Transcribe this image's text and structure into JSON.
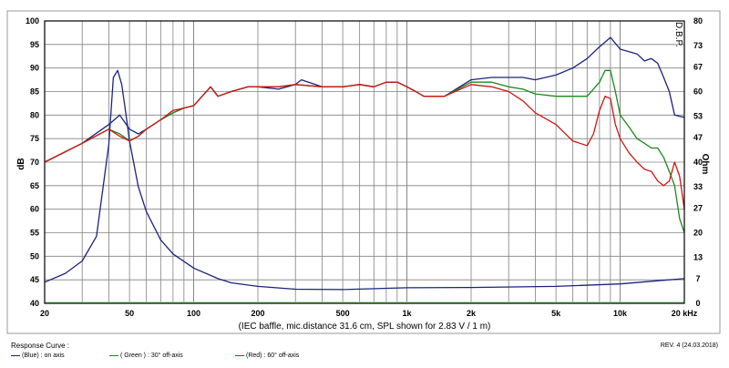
{
  "colors": {
    "blue": "#1a237e",
    "green": "#1a8a1a",
    "red": "#d01414",
    "impedance": "#1a237e",
    "floor": "#9ad99a"
  },
  "watermark": "D.B.P.",
  "legend": {
    "title": "Response Curve :",
    "items": [
      {
        "color": "blue",
        "text": "(Blue) : on axis"
      },
      {
        "color": "green",
        "text": "( Green ) : 30° off-axis"
      },
      {
        "color": "red",
        "text": "(Red) : 60° off-axis"
      }
    ]
  },
  "revision": "REV. 4 (24.03.2018)",
  "chart_data": {
    "type": "line",
    "title": "",
    "caption": "(IEC baffle, mic.distance 31.6 cm, SPL shown for 2.83 V / 1 m)",
    "xlabel": "",
    "ylabel": "dB",
    "y2label": "Ohm",
    "xscale": "log",
    "xlim": [
      20,
      20000
    ],
    "ylim": [
      40,
      100
    ],
    "y2lim": [
      0,
      80
    ],
    "x_ticks": [
      {
        "v": 20,
        "label": "20"
      },
      {
        "v": 50,
        "label": "50"
      },
      {
        "v": 100,
        "label": "100"
      },
      {
        "v": 200,
        "label": "200"
      },
      {
        "v": 500,
        "label": "500"
      },
      {
        "v": 1000,
        "label": "1k"
      },
      {
        "v": 2000,
        "label": "2k"
      },
      {
        "v": 5000,
        "label": "5k"
      },
      {
        "v": 10000,
        "label": "10k"
      },
      {
        "v": 20000,
        "label": "20 kHz"
      }
    ],
    "y_ticks": [
      40,
      45,
      50,
      55,
      60,
      65,
      70,
      75,
      80,
      85,
      90,
      95,
      100
    ],
    "y2_ticks": [
      0,
      7,
      13,
      20,
      27,
      33,
      40,
      47,
      53,
      60,
      67,
      73,
      80
    ],
    "grid": true,
    "series": [
      {
        "name": "on axis",
        "color": "blue",
        "axis": "left",
        "x": [
          20,
          30,
          40,
          45,
          50,
          55,
          60,
          70,
          80,
          90,
          100,
          120,
          130,
          150,
          180,
          200,
          250,
          300,
          320,
          400,
          500,
          600,
          700,
          800,
          900,
          1000,
          1100,
          1200,
          1500,
          2000,
          2500,
          3000,
          3500,
          4000,
          5000,
          6000,
          7000,
          8000,
          8500,
          9000,
          10000,
          12000,
          13000,
          14000,
          15000,
          16000,
          17000,
          18000,
          20000
        ],
        "y": [
          70,
          74,
          78,
          80,
          77,
          76,
          77,
          79,
          80.5,
          81.5,
          82,
          86,
          84,
          85,
          86,
          86,
          85.5,
          86.5,
          87.5,
          86,
          86,
          86.5,
          86,
          87,
          87,
          86,
          85,
          84,
          84,
          87.5,
          88,
          88,
          88,
          87.5,
          88.5,
          90,
          92,
          94.5,
          95.5,
          96.5,
          94,
          93,
          91.5,
          92,
          91,
          88,
          85,
          80,
          79.5
        ]
      },
      {
        "name": "30° off-axis",
        "color": "green",
        "axis": "left",
        "x": [
          20,
          30,
          40,
          45,
          50,
          55,
          60,
          70,
          80,
          90,
          100,
          120,
          130,
          150,
          180,
          200,
          250,
          300,
          400,
          500,
          600,
          700,
          800,
          900,
          1000,
          1100,
          1200,
          1500,
          2000,
          2500,
          3000,
          3500,
          4000,
          5000,
          6000,
          7000,
          8000,
          8500,
          9000,
          9500,
          10000,
          11000,
          12000,
          13000,
          14000,
          15000,
          16000,
          17000,
          18000,
          19000,
          20000
        ],
        "y": [
          70,
          74,
          77,
          76,
          74.5,
          75.5,
          77,
          79,
          80.5,
          81.5,
          82,
          86,
          84,
          85,
          86,
          86,
          86,
          86.5,
          86,
          86,
          86.5,
          86,
          87,
          87,
          86,
          85,
          84,
          84,
          87,
          87,
          86,
          85.5,
          84.5,
          84,
          84,
          84,
          87,
          89.5,
          89.5,
          85,
          80,
          77.5,
          75,
          74,
          73,
          73,
          71,
          68,
          65,
          58,
          55
        ]
      },
      {
        "name": "60° off-axis",
        "color": "red",
        "axis": "left",
        "x": [
          20,
          30,
          40,
          45,
          50,
          55,
          60,
          70,
          80,
          90,
          100,
          120,
          130,
          150,
          180,
          200,
          250,
          300,
          400,
          500,
          600,
          700,
          800,
          900,
          1000,
          1100,
          1200,
          1500,
          2000,
          2500,
          3000,
          3500,
          4000,
          5000,
          6000,
          7000,
          7500,
          8000,
          8500,
          9000,
          9500,
          10000,
          11000,
          12000,
          13000,
          14000,
          15000,
          16000,
          17000,
          18000,
          19000,
          20000
        ],
        "y": [
          70,
          74,
          77,
          75.5,
          74.5,
          75.5,
          77,
          79,
          81,
          81.5,
          82,
          86,
          84,
          85,
          86,
          86,
          86,
          86.5,
          86,
          86,
          86.5,
          86,
          87,
          87,
          86,
          85,
          84,
          84,
          86.5,
          86,
          85,
          83,
          80.5,
          78,
          74.5,
          73.5,
          76,
          81,
          84,
          83.5,
          78,
          75,
          72,
          70,
          68.5,
          68,
          66,
          65,
          66,
          70,
          67,
          60
        ]
      },
      {
        "name": "impedance",
        "color": "impedance",
        "axis": "right",
        "x": [
          20,
          25,
          30,
          35,
          40,
          42,
          44,
          46,
          48,
          50,
          55,
          60,
          70,
          80,
          100,
          130,
          150,
          200,
          300,
          500,
          1000,
          2000,
          5000,
          10000,
          15000,
          20000
        ],
        "y": [
          6,
          8.5,
          12,
          19,
          45,
          64,
          66,
          62,
          54,
          46,
          33,
          26,
          18,
          14,
          10,
          7,
          5.8,
          4.8,
          4.0,
          3.9,
          4.4,
          4.5,
          4.8,
          5.5,
          6.4,
          7.0
        ]
      }
    ]
  }
}
